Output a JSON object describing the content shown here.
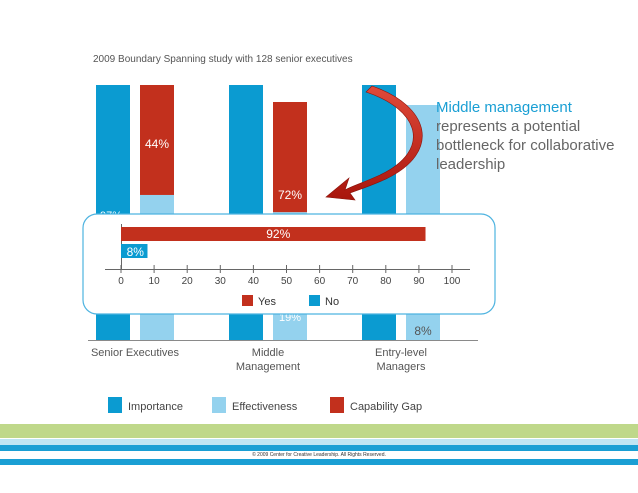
{
  "subtitle": "2009 Boundary Spanning study with 128 senior executives",
  "callout": {
    "highlight": "Middle management",
    "rest": "represents a potential bottleneck for collaborative leadership"
  },
  "copyright": "© 2009 Center for Creative Leadership. All Rights Reserved.",
  "colors": {
    "importance": "#0b9bd1",
    "effectiveness": "#94d2ee",
    "capability_gap": "#c2301d",
    "yes": "#c2301d",
    "no": "#0b9bd1"
  },
  "chart_data": [
    {
      "type": "bar",
      "categories": [
        "Senior Executives",
        "Middle Management",
        "Entry-level Managers"
      ],
      "category_lines": [
        [
          "Senior Executives"
        ],
        [
          "Middle",
          "Management"
        ],
        [
          "Entry-level",
          "Managers"
        ]
      ],
      "series": [
        {
          "name": "Importance",
          "values": [
            null,
            null,
            null
          ]
        },
        {
          "name": "Effectiveness",
          "values": [
            null,
            null,
            null
          ]
        },
        {
          "name": "Capability Gap",
          "values": [
            44,
            72,
            8
          ]
        }
      ],
      "data_labels": [
        "44%",
        "72%",
        "8%"
      ],
      "partially_obscured_labels": [
        "97%",
        "19%"
      ],
      "legend": "bottom"
    },
    {
      "type": "bar",
      "orientation": "horizontal",
      "series": [
        {
          "name": "Yes",
          "values": [
            92
          ]
        },
        {
          "name": "No",
          "values": [
            8
          ]
        }
      ],
      "data_labels": [
        "92%",
        "8%"
      ],
      "xlim": [
        0,
        100
      ],
      "xticks": [
        0,
        10,
        20,
        30,
        40,
        50,
        60,
        70,
        80,
        90,
        100
      ],
      "legend": "bottom"
    }
  ]
}
